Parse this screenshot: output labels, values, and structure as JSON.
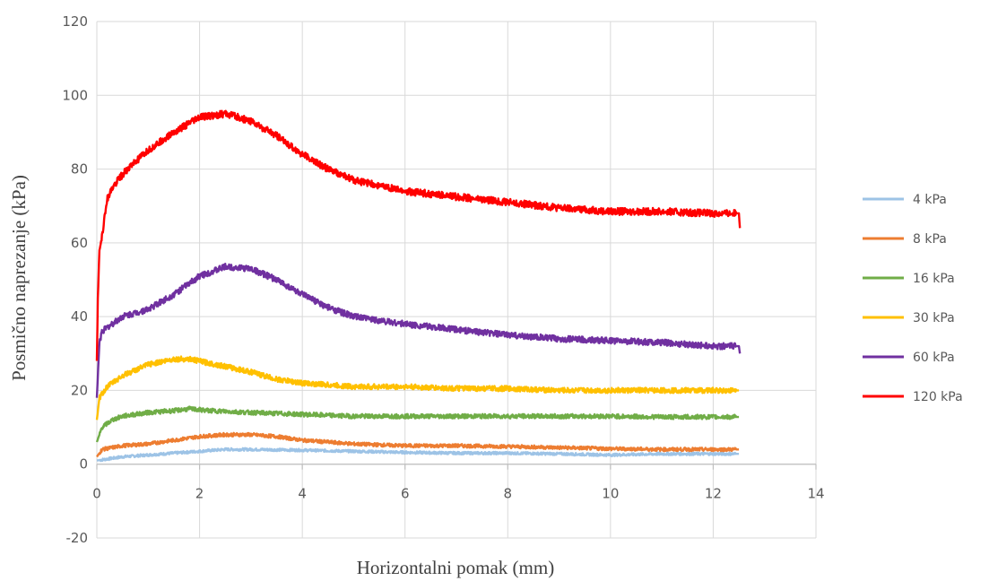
{
  "chart_data": {
    "type": "line",
    "title": "",
    "xlabel": "Horizontalni pomak (mm)",
    "ylabel": "Posmično naprezanje (kPa)",
    "xlim": [
      0,
      14
    ],
    "ylim": [
      -20,
      120
    ],
    "x_ticks": [
      0,
      2,
      4,
      6,
      8,
      10,
      12,
      14
    ],
    "y_ticks": [
      -20,
      0,
      20,
      40,
      60,
      80,
      100,
      120
    ],
    "grid": true,
    "legend_position": "right",
    "series": [
      {
        "name": "4 kPa",
        "color": "#9dc3e6",
        "points": [
          [
            0,
            1
          ],
          [
            0.5,
            2
          ],
          [
            1,
            2.5
          ],
          [
            1.5,
            3
          ],
          [
            2,
            3.5
          ],
          [
            2.5,
            4
          ],
          [
            3,
            4
          ],
          [
            4,
            3.8
          ],
          [
            5,
            3.5
          ],
          [
            6,
            3.2
          ],
          [
            7,
            3
          ],
          [
            8,
            3
          ],
          [
            9,
            2.8
          ],
          [
            10,
            2.5
          ],
          [
            11,
            2.8
          ],
          [
            12,
            2.8
          ],
          [
            12.5,
            2.8
          ]
        ]
      },
      {
        "name": "8 kPa",
        "color": "#ed7d31",
        "points": [
          [
            0,
            2
          ],
          [
            0.1,
            4
          ],
          [
            0.5,
            5
          ],
          [
            1,
            5.5
          ],
          [
            1.5,
            6.5
          ],
          [
            2,
            7.5
          ],
          [
            2.5,
            8
          ],
          [
            3,
            8
          ],
          [
            3.5,
            7.5
          ],
          [
            4,
            6.5
          ],
          [
            5,
            5.5
          ],
          [
            6,
            5
          ],
          [
            7,
            5
          ],
          [
            8,
            4.8
          ],
          [
            9,
            4.5
          ],
          [
            10,
            4.2
          ],
          [
            11,
            4
          ],
          [
            12,
            4
          ],
          [
            12.5,
            4
          ]
        ]
      },
      {
        "name": "16 kPa",
        "color": "#70ad47",
        "points": [
          [
            0,
            6
          ],
          [
            0.1,
            10
          ],
          [
            0.3,
            12
          ],
          [
            0.5,
            13
          ],
          [
            1,
            14
          ],
          [
            1.5,
            14.5
          ],
          [
            1.8,
            15
          ],
          [
            2.2,
            14.5
          ],
          [
            3,
            14
          ],
          [
            4,
            13.5
          ],
          [
            5,
            13
          ],
          [
            6,
            13
          ],
          [
            7,
            13
          ],
          [
            8,
            13
          ],
          [
            9,
            13
          ],
          [
            10,
            13
          ],
          [
            11,
            12.8
          ],
          [
            12,
            12.8
          ],
          [
            12.5,
            12.8
          ]
        ]
      },
      {
        "name": "30 kPa",
        "color": "#ffc000",
        "points": [
          [
            0,
            12
          ],
          [
            0.05,
            18
          ],
          [
            0.2,
            21
          ],
          [
            0.5,
            24
          ],
          [
            1,
            27
          ],
          [
            1.5,
            28.5
          ],
          [
            1.8,
            28.5
          ],
          [
            2.5,
            26.5
          ],
          [
            3,
            25
          ],
          [
            3.5,
            23
          ],
          [
            4,
            22
          ],
          [
            5,
            21
          ],
          [
            6,
            21
          ],
          [
            7,
            20.5
          ],
          [
            8,
            20.5
          ],
          [
            9,
            20
          ],
          [
            10,
            20
          ],
          [
            11,
            20
          ],
          [
            12,
            20
          ],
          [
            12.5,
            20
          ]
        ]
      },
      {
        "name": "60 kPa",
        "color": "#7030a0",
        "points": [
          [
            0,
            18
          ],
          [
            0.05,
            33
          ],
          [
            0.1,
            36
          ],
          [
            0.3,
            38
          ],
          [
            0.5,
            40
          ],
          [
            1,
            42
          ],
          [
            1.5,
            46
          ],
          [
            2,
            51
          ],
          [
            2.5,
            53.5
          ],
          [
            3,
            53
          ],
          [
            3.5,
            50
          ],
          [
            4,
            46
          ],
          [
            4.5,
            42.5
          ],
          [
            5,
            40
          ],
          [
            6,
            38
          ],
          [
            7,
            36.5
          ],
          [
            8,
            35
          ],
          [
            9,
            34
          ],
          [
            10,
            33.5
          ],
          [
            11,
            33
          ],
          [
            12,
            32
          ],
          [
            12.5,
            32
          ],
          [
            12.52,
            30
          ]
        ]
      },
      {
        "name": "120 kPa",
        "color": "#ff0000",
        "points": [
          [
            0,
            28
          ],
          [
            0.02,
            45
          ],
          [
            0.05,
            58
          ],
          [
            0.1,
            62
          ],
          [
            0.2,
            72
          ],
          [
            0.4,
            77
          ],
          [
            0.6,
            80
          ],
          [
            1,
            85
          ],
          [
            1.5,
            90
          ],
          [
            2,
            94
          ],
          [
            2.5,
            95
          ],
          [
            3,
            93
          ],
          [
            3.5,
            89
          ],
          [
            4,
            84
          ],
          [
            4.5,
            80
          ],
          [
            5,
            77
          ],
          [
            6,
            74
          ],
          [
            7,
            72.5
          ],
          [
            8,
            71
          ],
          [
            9,
            69.5
          ],
          [
            10,
            68.5
          ],
          [
            11,
            68.5
          ],
          [
            12,
            68
          ],
          [
            12.5,
            68
          ],
          [
            12.52,
            64
          ]
        ]
      }
    ]
  }
}
